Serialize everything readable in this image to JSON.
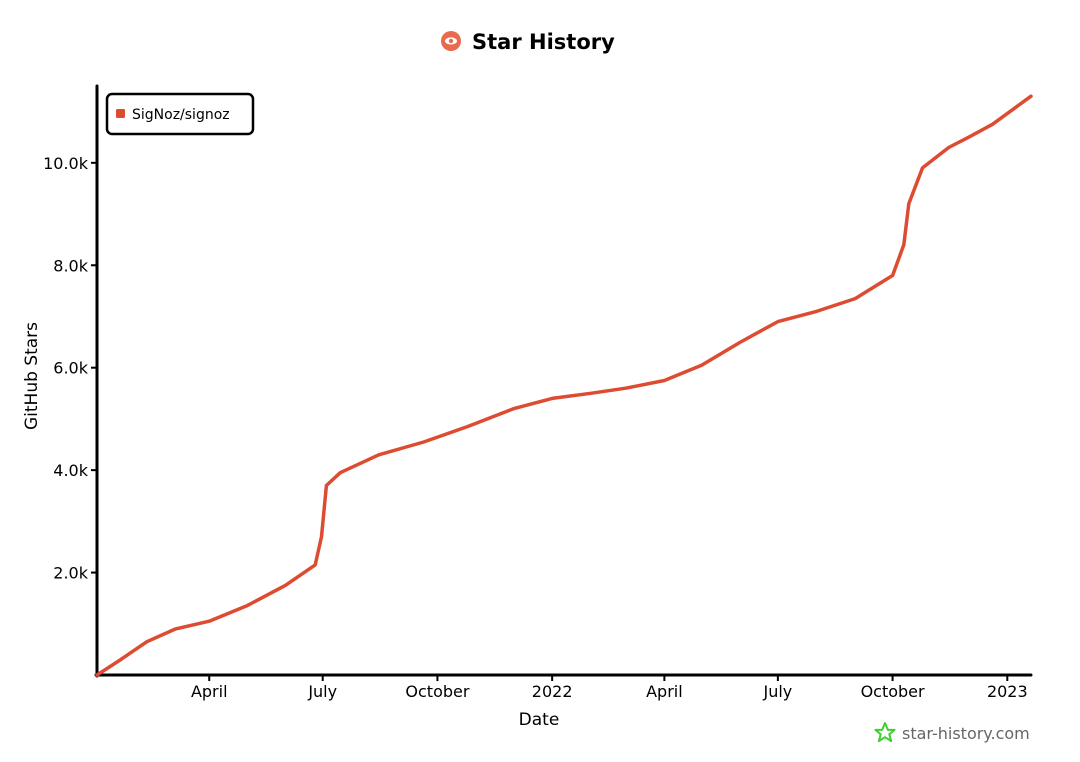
{
  "chart_data": {
    "type": "line",
    "title": "Star History",
    "xlabel": "Date",
    "ylabel": "GitHub Stars",
    "legend": {
      "position": "top-left",
      "entries": [
        "SigNoz/signoz"
      ]
    },
    "grid": false,
    "x_ticks": [
      {
        "date": "2021-04-01",
        "label": "April"
      },
      {
        "date": "2021-07-01",
        "label": "July"
      },
      {
        "date": "2021-10-01",
        "label": "October"
      },
      {
        "date": "2022-01-01",
        "label": "2022"
      },
      {
        "date": "2022-04-01",
        "label": "April"
      },
      {
        "date": "2022-07-01",
        "label": "July"
      },
      {
        "date": "2022-10-01",
        "label": "October"
      },
      {
        "date": "2023-01-01",
        "label": "2023"
      }
    ],
    "y_ticks": [
      {
        "value": 2000,
        "label": "2.0k"
      },
      {
        "value": 4000,
        "label": "4.0k"
      },
      {
        "value": 6000,
        "label": "6.0k"
      },
      {
        "value": 8000,
        "label": "8.0k"
      },
      {
        "value": 10000,
        "label": "10.0k"
      }
    ],
    "xlim": [
      "2021-01-01",
      "2023-01-20"
    ],
    "ylim": [
      0,
      11500
    ],
    "series": [
      {
        "name": "SigNoz/signoz",
        "color": "#dd4b31",
        "points": [
          {
            "date": "2021-01-01",
            "stars": 0
          },
          {
            "date": "2021-01-20",
            "stars": 300
          },
          {
            "date": "2021-02-10",
            "stars": 650
          },
          {
            "date": "2021-03-05",
            "stars": 900
          },
          {
            "date": "2021-04-01",
            "stars": 1050
          },
          {
            "date": "2021-05-01",
            "stars": 1350
          },
          {
            "date": "2021-06-01",
            "stars": 1750
          },
          {
            "date": "2021-06-25",
            "stars": 2150
          },
          {
            "date": "2021-06-30",
            "stars": 2700
          },
          {
            "date": "2021-07-04",
            "stars": 3700
          },
          {
            "date": "2021-07-15",
            "stars": 3950
          },
          {
            "date": "2021-08-15",
            "stars": 4300
          },
          {
            "date": "2021-09-20",
            "stars": 4550
          },
          {
            "date": "2021-10-25",
            "stars": 4850
          },
          {
            "date": "2021-12-01",
            "stars": 5200
          },
          {
            "date": "2022-01-01",
            "stars": 5400
          },
          {
            "date": "2022-02-01",
            "stars": 5500
          },
          {
            "date": "2022-03-01",
            "stars": 5600
          },
          {
            "date": "2022-04-01",
            "stars": 5750
          },
          {
            "date": "2022-05-01",
            "stars": 6050
          },
          {
            "date": "2022-06-01",
            "stars": 6500
          },
          {
            "date": "2022-07-01",
            "stars": 6900
          },
          {
            "date": "2022-08-01",
            "stars": 7100
          },
          {
            "date": "2022-09-01",
            "stars": 7350
          },
          {
            "date": "2022-10-01",
            "stars": 7800
          },
          {
            "date": "2022-10-10",
            "stars": 8400
          },
          {
            "date": "2022-10-14",
            "stars": 9200
          },
          {
            "date": "2022-10-25",
            "stars": 9900
          },
          {
            "date": "2022-11-15",
            "stars": 10300
          },
          {
            "date": "2022-12-01",
            "stars": 10500
          },
          {
            "date": "2022-12-20",
            "stars": 10750
          },
          {
            "date": "2023-01-20",
            "stars": 11300
          }
        ]
      }
    ]
  },
  "footer": {
    "brand": "star-history.com",
    "brand_color": "#3fcf2f",
    "icon": "star-outline-icon"
  },
  "title_icon": "eye-logo-icon"
}
